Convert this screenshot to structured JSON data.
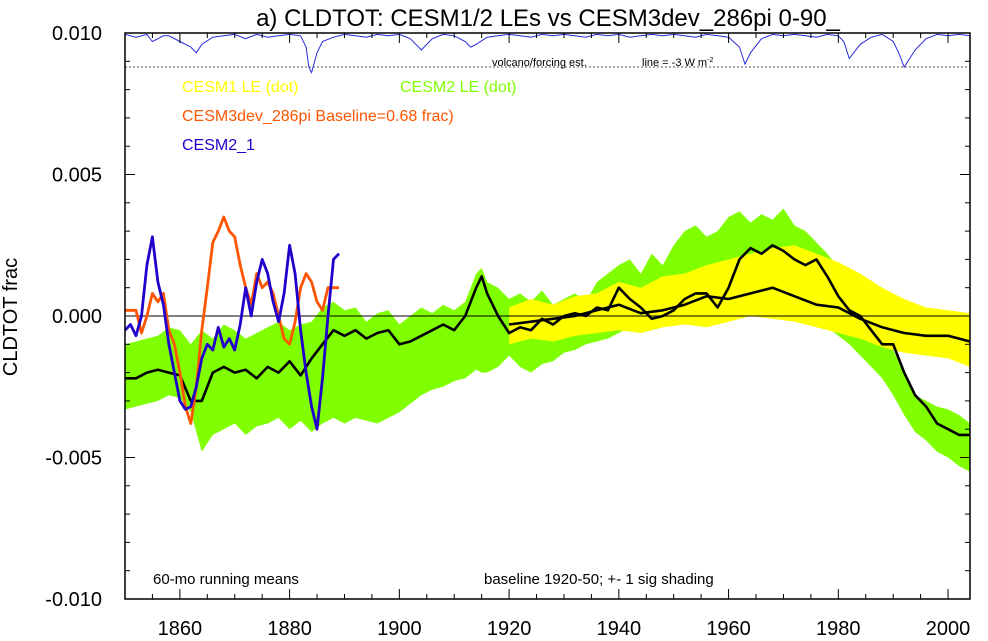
{
  "chart_data": {
    "type": "line",
    "title": "a) CLDTOT: CESM1/2 LEs vs CESM3dev_286pi 0-90_",
    "ylabel": "CLDTOT frac",
    "xlim": [
      1850,
      2004
    ],
    "ylim": [
      -0.01,
      0.01
    ],
    "x_ticks": [
      1860,
      1880,
      1900,
      1920,
      1940,
      1960,
      1980,
      2000
    ],
    "y_ticks": [
      {
        "value": -0.01,
        "label": "-0.010"
      },
      {
        "value": -0.005,
        "label": "-0.005"
      },
      {
        "value": 0.0,
        "label": "0.000"
      },
      {
        "value": 0.005,
        "label": "0.005"
      },
      {
        "value": 0.01,
        "label": "0.010"
      }
    ],
    "legend": [
      {
        "label": "CESM1 LE (dot)",
        "color": "#ffff00"
      },
      {
        "label": "CESM2 LE (dot)",
        "color": "#80ff00"
      },
      {
        "label": "CESM3dev_286pi Baseline=0.68 frac)",
        "color": "#ff5500"
      },
      {
        "label": "CESM2_1",
        "color": "#2200cc"
      }
    ],
    "annotations": {
      "volcano_label": "volcano/forcing est.",
      "volcano_line_label": "line = -3 W m",
      "volcano_line_unit_sup": "-2",
      "bottom_left": "60-mo running means",
      "bottom_right": "baseline 1920-50; +- 1 sig shading"
    },
    "volcano_reference_level": 0.0088,
    "volcano_trace": {
      "x": [
        1850,
        1852,
        1854,
        1855,
        1856,
        1857,
        1858,
        1860,
        1862,
        1863,
        1864,
        1866,
        1868,
        1870,
        1872,
        1874,
        1876,
        1878,
        1880,
        1882,
        1883,
        1883.5,
        1884,
        1885,
        1886,
        1888,
        1890,
        1892,
        1894,
        1896,
        1898,
        1900,
        1902,
        1903,
        1904,
        1906,
        1908,
        1910,
        1912,
        1913,
        1914,
        1916,
        1918,
        1920,
        1922,
        1924,
        1926,
        1928,
        1930,
        1932,
        1934,
        1936,
        1938,
        1940,
        1942,
        1944,
        1946,
        1948,
        1950,
        1952,
        1954,
        1956,
        1958,
        1960,
        1962,
        1963,
        1964,
        1966,
        1968,
        1970,
        1972,
        1974,
        1976,
        1978,
        1980,
        1981,
        1982,
        1984,
        1986,
        1988,
        1990,
        1991,
        1992,
        1994,
        1996,
        1998,
        2000,
        2002,
        2004
      ],
      "y": [
        0.00995,
        0.00985,
        0.00995,
        0.0097,
        0.0098,
        0.0099,
        0.0099,
        0.0097,
        0.0095,
        0.0093,
        0.0096,
        0.00985,
        0.0099,
        0.00995,
        0.0098,
        0.00995,
        0.00985,
        0.0099,
        0.00995,
        0.0099,
        0.0095,
        0.0088,
        0.0086,
        0.0093,
        0.0097,
        0.00985,
        0.00995,
        0.0099,
        0.00985,
        0.00995,
        0.0099,
        0.00995,
        0.0098,
        0.0096,
        0.0094,
        0.0098,
        0.00995,
        0.0099,
        0.0097,
        0.0095,
        0.0096,
        0.00985,
        0.0099,
        0.00995,
        0.0099,
        0.00985,
        0.00995,
        0.0099,
        0.00995,
        0.0099,
        0.00985,
        0.00995,
        0.0099,
        0.00995,
        0.00985,
        0.0099,
        0.00995,
        0.0099,
        0.00995,
        0.0099,
        0.00985,
        0.00995,
        0.0099,
        0.00985,
        0.0095,
        0.0089,
        0.0093,
        0.0098,
        0.00995,
        0.0099,
        0.00995,
        0.0099,
        0.00985,
        0.00995,
        0.0099,
        0.0097,
        0.0091,
        0.0096,
        0.00985,
        0.00995,
        0.0097,
        0.0093,
        0.0088,
        0.0094,
        0.0098,
        0.00995,
        0.0099,
        0.00995,
        0.0099
      ]
    },
    "bands": [
      {
        "name": "CESM2 LE (dot)",
        "color": "#80ff00",
        "x": [
          1850,
          1852,
          1854,
          1856,
          1858,
          1860,
          1862,
          1864,
          1866,
          1868,
          1870,
          1872,
          1874,
          1876,
          1878,
          1880,
          1882,
          1884,
          1886,
          1888,
          1890,
          1892,
          1894,
          1896,
          1898,
          1900,
          1902,
          1904,
          1906,
          1908,
          1910,
          1912,
          1914,
          1915,
          1916,
          1918,
          1920,
          1922,
          1924,
          1926,
          1928,
          1930,
          1932,
          1934,
          1936,
          1938,
          1940,
          1942,
          1944,
          1946,
          1948,
          1950,
          1952,
          1954,
          1956,
          1958,
          1960,
          1962,
          1964,
          1966,
          1968,
          1970,
          1972,
          1974,
          1976,
          1978,
          1980,
          1982,
          1984,
          1986,
          1988,
          1990,
          1992,
          1994,
          1996,
          1998,
          2000,
          2002,
          2004
        ],
        "upper": [
          -0.001,
          -0.0009,
          -0.0008,
          -0.0007,
          -0.0004,
          -0.0005,
          -0.001,
          -0.0005,
          -0.0008,
          -0.0003,
          -0.0005,
          -0.0008,
          -0.0006,
          -0.0004,
          -0.0002,
          -0.0005,
          -0.0003,
          -0.0002,
          0.0003,
          0.0005,
          0.0002,
          0.0003,
          -0.0002,
          0.0001,
          0.0002,
          -0.0003,
          0.0,
          0.0003,
          0.0001,
          0.0004,
          0.0002,
          0.0005,
          0.0015,
          0.0017,
          0.0012,
          0.001,
          0.0006,
          0.0008,
          0.0005,
          0.0009,
          0.0004,
          0.0006,
          0.0008,
          0.0005,
          0.0012,
          0.0015,
          0.0018,
          0.002,
          0.0015,
          0.0022,
          0.0018,
          0.0025,
          0.003,
          0.0032,
          0.0028,
          0.003,
          0.0035,
          0.0037,
          0.0033,
          0.0036,
          0.0034,
          0.0038,
          0.0032,
          0.003,
          0.0026,
          0.0022,
          0.0017,
          0.0012,
          0.0007,
          0.0003,
          -0.0006,
          -0.0012,
          -0.002,
          -0.0028,
          -0.003,
          -0.0032,
          -0.0033,
          -0.0035,
          -0.0038
        ],
        "lower": [
          -0.0033,
          -0.0032,
          -0.0031,
          -0.003,
          -0.0028,
          -0.0029,
          -0.0034,
          -0.0048,
          -0.0042,
          -0.004,
          -0.0038,
          -0.0042,
          -0.0039,
          -0.0038,
          -0.0036,
          -0.004,
          -0.0037,
          -0.0041,
          -0.0038,
          -0.0036,
          -0.0038,
          -0.0036,
          -0.0037,
          -0.0038,
          -0.0036,
          -0.0034,
          -0.0031,
          -0.0028,
          -0.0026,
          -0.0025,
          -0.0023,
          -0.0022,
          -0.0019,
          -0.002,
          -0.002,
          -0.0018,
          -0.0014,
          -0.0018,
          -0.002,
          -0.0017,
          -0.0016,
          -0.0013,
          -0.0012,
          -0.001,
          -0.0009,
          -0.0008,
          -0.0006,
          -0.0004,
          -0.0006,
          -0.0005,
          -0.0004,
          -0.0001,
          0.0,
          0.0004,
          0.0006,
          0.0007,
          0.0009,
          0.0012,
          0.001,
          0.0012,
          0.0011,
          0.0008,
          0.0006,
          0.0004,
          0.0,
          -0.0004,
          -0.0007,
          -0.001,
          -0.0014,
          -0.0018,
          -0.0022,
          -0.0028,
          -0.0035,
          -0.0041,
          -0.0044,
          -0.0048,
          -0.005,
          -0.0053,
          -0.0055
        ]
      },
      {
        "name": "CESM1 LE (dot)",
        "color": "#ffff00",
        "x": [
          1920,
          1924,
          1928,
          1932,
          1936,
          1940,
          1944,
          1948,
          1952,
          1956,
          1960,
          1964,
          1968,
          1972,
          1976,
          1980,
          1984,
          1988,
          1992,
          1996,
          2000,
          2004
        ],
        "upper": [
          0.0003,
          0.0006,
          0.0004,
          0.0007,
          0.0008,
          0.0012,
          0.001,
          0.0014,
          0.0015,
          0.0018,
          0.002,
          0.0022,
          0.0024,
          0.0025,
          0.0022,
          0.0019,
          0.0015,
          0.001,
          0.0006,
          0.0003,
          0.0002,
          0.0001
        ],
        "lower": [
          -0.001,
          -0.0008,
          -0.0009,
          -0.0007,
          -0.0006,
          -0.0005,
          -0.0006,
          -0.0004,
          -0.0003,
          -0.0004,
          -0.0002,
          0.0,
          -0.0001,
          -0.0002,
          -0.0004,
          -0.0006,
          -0.0008,
          -0.0011,
          -0.0013,
          -0.0014,
          -0.0015,
          -0.0018
        ]
      }
    ],
    "series": [
      {
        "name": "CESM2 LE (dot)",
        "role": "ensemble mean",
        "color": "#000000",
        "x": [
          1850,
          1852,
          1854,
          1856,
          1858,
          1860,
          1862,
          1864,
          1866,
          1868,
          1870,
          1872,
          1874,
          1876,
          1878,
          1880,
          1882,
          1884,
          1886,
          1888,
          1890,
          1892,
          1894,
          1896,
          1898,
          1900,
          1902,
          1904,
          1906,
          1908,
          1910,
          1912,
          1914,
          1915,
          1916,
          1918,
          1920,
          1922,
          1924,
          1926,
          1928,
          1930,
          1932,
          1934,
          1936,
          1938,
          1940,
          1942,
          1944,
          1946,
          1948,
          1950,
          1952,
          1954,
          1956,
          1958,
          1960,
          1962,
          1964,
          1966,
          1968,
          1970,
          1972,
          1974,
          1976,
          1978,
          1980,
          1982,
          1984,
          1986,
          1988,
          1990,
          1992,
          1994,
          1996,
          1998,
          2000,
          2002,
          2004
        ],
        "y": [
          -0.0022,
          -0.0022,
          -0.002,
          -0.0019,
          -0.002,
          -0.0021,
          -0.003,
          -0.003,
          -0.002,
          -0.0018,
          -0.002,
          -0.0019,
          -0.0022,
          -0.0018,
          -0.002,
          -0.0016,
          -0.0021,
          -0.0015,
          -0.001,
          -0.0005,
          -0.0007,
          -0.0005,
          -0.0008,
          -0.0006,
          -0.0005,
          -0.001,
          -0.0009,
          -0.0007,
          -0.0005,
          -0.0003,
          -0.0005,
          0.0,
          0.001,
          0.0014,
          0.0008,
          0.0,
          -0.0006,
          -0.0004,
          -0.0005,
          -0.0001,
          -0.0003,
          0.0,
          0.0001,
          0.0,
          0.0003,
          0.0002,
          0.001,
          0.0006,
          0.0003,
          -0.0001,
          0.0,
          0.0002,
          0.0006,
          0.0008,
          0.0008,
          0.0003,
          0.001,
          0.002,
          0.0024,
          0.0022,
          0.0025,
          0.0023,
          0.002,
          0.0018,
          0.002,
          0.0014,
          0.0007,
          0.0002,
          0.0,
          -0.0005,
          -0.001,
          -0.001,
          -0.002,
          -0.0028,
          -0.0032,
          -0.0038,
          -0.004,
          -0.0042,
          -0.0042
        ]
      },
      {
        "name": "CESM1 LE (dot)",
        "role": "ensemble mean",
        "color": "#000000",
        "x": [
          1920,
          1924,
          1928,
          1932,
          1936,
          1940,
          1944,
          1948,
          1952,
          1956,
          1960,
          1964,
          1968,
          1972,
          1976,
          1980,
          1984,
          1988,
          1992,
          1996,
          2000,
          2004
        ],
        "y": [
          -0.0003,
          -0.0002,
          -0.0001,
          0.0,
          0.0002,
          0.0004,
          0.0001,
          0.0002,
          0.0004,
          0.0007,
          0.0006,
          0.0008,
          0.001,
          0.0007,
          0.0004,
          0.0003,
          -0.0001,
          -0.0004,
          -0.0006,
          -0.0007,
          -0.0007,
          -0.0009
        ]
      },
      {
        "name": "CESM3dev_286pi Baseline=0.68 frac)",
        "color": "#ff5500",
        "x": [
          1850,
          1852,
          1853,
          1854,
          1855,
          1856,
          1857,
          1858,
          1859,
          1860,
          1861,
          1862,
          1863,
          1864,
          1865,
          1866,
          1867,
          1868,
          1869,
          1870,
          1871,
          1872,
          1873,
          1874,
          1875,
          1876,
          1877,
          1878,
          1879,
          1880,
          1881,
          1882,
          1883,
          1884,
          1885,
          1886,
          1887,
          1888,
          1889
        ],
        "y": [
          0.0002,
          0.0002,
          -0.0006,
          0.0,
          0.0008,
          0.0005,
          0.0008,
          -0.0005,
          -0.001,
          -0.002,
          -0.0032,
          -0.0038,
          -0.0025,
          -0.0005,
          0.001,
          0.0026,
          0.003,
          0.0035,
          0.003,
          0.0028,
          0.0018,
          0.001,
          0.0004,
          0.0015,
          0.001,
          0.0012,
          0.0008,
          0.0,
          -0.0008,
          -0.001,
          -0.0002,
          0.001,
          0.0015,
          0.0012,
          0.0005,
          0.0002,
          0.001,
          0.001,
          0.001
        ]
      },
      {
        "name": "CESM2_1",
        "color": "#2200cc",
        "x": [
          1850,
          1851,
          1852,
          1853,
          1854,
          1855,
          1856,
          1857,
          1858,
          1859,
          1860,
          1861,
          1862,
          1863,
          1864,
          1865,
          1866,
          1867,
          1868,
          1869,
          1870,
          1871,
          1872,
          1873,
          1874,
          1875,
          1876,
          1877,
          1878,
          1879,
          1880,
          1881,
          1882,
          1883,
          1884,
          1885,
          1886,
          1887,
          1888,
          1889
        ],
        "y": [
          -0.0005,
          -0.0003,
          -0.0007,
          0.0,
          0.0018,
          0.0028,
          0.0012,
          0.0004,
          -0.001,
          -0.002,
          -0.003,
          -0.0033,
          -0.0032,
          -0.0025,
          -0.0015,
          -0.001,
          -0.0012,
          -0.0004,
          -0.0011,
          -0.0008,
          -0.0012,
          -0.0003,
          0.001,
          0.0,
          0.0012,
          0.002,
          0.0015,
          0.0005,
          -0.0002,
          0.0008,
          0.0025,
          0.0015,
          -0.0005,
          -0.002,
          -0.0032,
          -0.004,
          -0.0022,
          0.0,
          0.002,
          0.0022
        ]
      }
    ]
  }
}
